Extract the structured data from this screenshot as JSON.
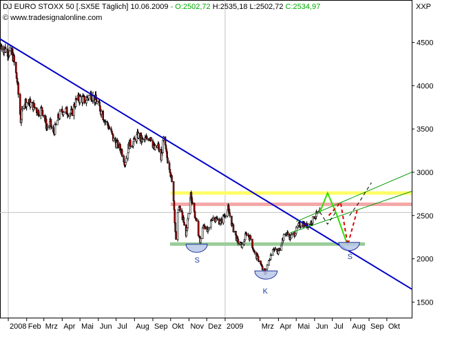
{
  "header": {
    "title": "DJ EURO STOXX 50 [.SX5E  Täglich]",
    "date": "10.06.2009",
    "ohlc": [
      {
        "text": " - O:2502,72",
        "color": "#00aa00"
      },
      {
        "text": " H:2535,18",
        "color": "#000000"
      },
      {
        "text": " L:2502,72",
        "color": "#000000"
      },
      {
        "text": " C:2534,97",
        "color": "#00aa00"
      }
    ],
    "source": "© www.tradesignalonline.com"
  },
  "colors": {
    "price": "#000000",
    "up_body": "#ffffff",
    "down_body": "#b40000",
    "downtrend_line": "#0000c8",
    "channel_lines": "#009900",
    "resistance": "#ffff66",
    "resistance_2": "#f4a8a8",
    "support": "#99cc99",
    "projection_green": "#33dd00",
    "projection_red": "#e00000",
    "formation_fill": "#b8c8e8",
    "grid": "#c0c0c0"
  },
  "chart_data": {
    "type": "line",
    "title": "DJ EURO STOXX 50 [.SX5E  Täglich]",
    "ylabel": "XXP",
    "xlabel": "",
    "ylim": [
      1320,
      4990
    ],
    "xlim": [
      "2007-12-18",
      "2009-11-12"
    ],
    "y_ticks": [
      1500,
      2000,
      2500,
      3000,
      3500,
      4000,
      4500
    ],
    "x_tick_labels": [
      {
        "label": "2008",
        "date": "2008-01-01"
      },
      {
        "label": "Feb",
        "date": "2008-02-01"
      },
      {
        "label": "Mrz",
        "date": "2008-03-01"
      },
      {
        "label": "Apr",
        "date": "2008-04-01"
      },
      {
        "label": "Mai",
        "date": "2008-05-01"
      },
      {
        "label": "Jun",
        "date": "2008-06-01"
      },
      {
        "label": "Jul",
        "date": "2008-07-01"
      },
      {
        "label": "Aug",
        "date": "2008-08-01"
      },
      {
        "label": "Sep",
        "date": "2008-09-01"
      },
      {
        "label": "Okt",
        "date": "2008-10-01"
      },
      {
        "label": "Nov",
        "date": "2008-11-01"
      },
      {
        "label": "Dez",
        "date": "2008-12-01"
      },
      {
        "label": "2009",
        "date": "2009-01-01"
      },
      {
        "label": "Mrz",
        "date": "2009-03-01"
      },
      {
        "label": "Apr",
        "date": "2009-04-01"
      },
      {
        "label": "Mai",
        "date": "2009-05-01"
      },
      {
        "label": "Jun",
        "date": "2009-06-01"
      },
      {
        "label": "Jul",
        "date": "2009-07-01"
      },
      {
        "label": "Aug",
        "date": "2009-08-01"
      },
      {
        "label": "Sep",
        "date": "2009-09-01"
      },
      {
        "label": "Okt",
        "date": "2009-10-01"
      }
    ],
    "year_separators": [
      "2008-01-01",
      "2009-01-01"
    ],
    "grid": true,
    "series": [
      {
        "points": [
          [
            "2007-12-20",
            4460
          ],
          [
            "2007-12-31",
            4400
          ],
          [
            "2008-01-09",
            4340
          ],
          [
            "2008-01-16",
            4050
          ],
          [
            "2008-01-22",
            3600
          ],
          [
            "2008-01-28",
            3820
          ],
          [
            "2008-02-06",
            3800
          ],
          [
            "2008-02-13",
            3760
          ],
          [
            "2008-02-20",
            3700
          ],
          [
            "2008-02-27",
            3730
          ],
          [
            "2008-03-06",
            3520
          ],
          [
            "2008-03-12",
            3560
          ],
          [
            "2008-03-17",
            3440
          ],
          [
            "2008-03-26",
            3640
          ],
          [
            "2008-04-03",
            3720
          ],
          [
            "2008-04-10",
            3700
          ],
          [
            "2008-04-17",
            3680
          ],
          [
            "2008-04-24",
            3820
          ],
          [
            "2008-05-02",
            3860
          ],
          [
            "2008-05-09",
            3830
          ],
          [
            "2008-05-19",
            3900
          ],
          [
            "2008-05-28",
            3830
          ],
          [
            "2008-06-05",
            3720
          ],
          [
            "2008-06-12",
            3600
          ],
          [
            "2008-06-19",
            3520
          ],
          [
            "2008-06-27",
            3370
          ],
          [
            "2008-07-04",
            3310
          ],
          [
            "2008-07-10",
            3250
          ],
          [
            "2008-07-16",
            3110
          ],
          [
            "2008-07-23",
            3320
          ],
          [
            "2008-07-31",
            3350
          ],
          [
            "2008-08-07",
            3430
          ],
          [
            "2008-08-14",
            3360
          ],
          [
            "2008-08-21",
            3380
          ],
          [
            "2008-08-28",
            3420
          ],
          [
            "2008-09-04",
            3260
          ],
          [
            "2008-09-10",
            3300
          ],
          [
            "2008-09-15",
            3150
          ],
          [
            "2008-09-19",
            3380
          ],
          [
            "2008-09-25",
            3170
          ],
          [
            "2008-09-30",
            3040
          ],
          [
            "2008-10-06",
            2700
          ],
          [
            "2008-10-10",
            2200
          ],
          [
            "2008-10-14",
            2600
          ],
          [
            "2008-10-20",
            2520
          ],
          [
            "2008-10-27",
            2260
          ],
          [
            "2008-11-04",
            2760
          ],
          [
            "2008-11-11",
            2500
          ],
          [
            "2008-11-20",
            2200
          ],
          [
            "2008-11-26",
            2410
          ],
          [
            "2008-12-03",
            2300
          ],
          [
            "2008-12-10",
            2480
          ],
          [
            "2008-12-17",
            2460
          ],
          [
            "2008-12-24",
            2420
          ],
          [
            "2009-01-06",
            2580
          ],
          [
            "2009-01-14",
            2360
          ],
          [
            "2009-01-22",
            2200
          ],
          [
            "2009-01-30",
            2150
          ],
          [
            "2009-02-06",
            2300
          ],
          [
            "2009-02-13",
            2230
          ],
          [
            "2009-02-20",
            2050
          ],
          [
            "2009-02-27",
            1990
          ],
          [
            "2009-03-05",
            1880
          ],
          [
            "2009-03-09",
            1810
          ],
          [
            "2009-03-16",
            1980
          ],
          [
            "2009-03-23",
            2130
          ],
          [
            "2009-03-31",
            2060
          ],
          [
            "2009-04-07",
            2210
          ],
          [
            "2009-04-14",
            2300
          ],
          [
            "2009-04-21",
            2250
          ],
          [
            "2009-04-28",
            2290
          ],
          [
            "2009-05-05",
            2380
          ],
          [
            "2009-05-11",
            2410
          ],
          [
            "2009-05-18",
            2380
          ],
          [
            "2009-05-26",
            2420
          ],
          [
            "2009-06-02",
            2500
          ],
          [
            "2009-06-10",
            2535
          ]
        ]
      }
    ],
    "trendlines": [
      {
        "kind": "downtrend",
        "color_key": "downtrend_line",
        "from": [
          "2007-12-18",
          4540
        ],
        "to": [
          "2009-11-12",
          1650
        ]
      },
      {
        "kind": "channel_upper",
        "color_key": "channel_lines",
        "from": [
          "2009-05-01",
          2430
        ],
        "to": [
          "2009-11-12",
          3000
        ]
      },
      {
        "kind": "channel_lower",
        "color_key": "channel_lines",
        "from": [
          "2009-04-21",
          2300
        ],
        "to": [
          "2009-11-12",
          2780
        ]
      }
    ],
    "horizontal_bands": [
      {
        "kind": "resistance",
        "color_key": "resistance",
        "level": 2760,
        "from": "2008-10-01",
        "to": "2009-11-12"
      },
      {
        "kind": "resistance",
        "color_key": "resistance_2",
        "level": 2630,
        "from": "2008-10-01",
        "to": "2009-11-12"
      },
      {
        "kind": "support",
        "color_key": "support",
        "level": 2170,
        "from": "2008-09-30",
        "to": "2009-08-25"
      }
    ],
    "projections": [
      {
        "color_key": "projection_green",
        "points": [
          [
            "2009-06-10",
            2540
          ],
          [
            "2009-06-23",
            2760
          ],
          [
            "2009-07-08",
            2520
          ],
          [
            "2009-07-27",
            2150
          ]
        ]
      },
      {
        "color_key": "projection_red",
        "dashed": true,
        "points": [
          [
            "2009-06-25",
            2500
          ],
          [
            "2009-07-15",
            2650
          ],
          [
            "2009-07-27",
            2160
          ],
          [
            "2009-08-12",
            2560
          ]
        ]
      },
      {
        "color_key": "price",
        "dashed": true,
        "points": [
          [
            "2009-06-10",
            2540
          ],
          [
            "2009-06-23",
            2400
          ],
          [
            "2009-07-08",
            2550
          ]
        ]
      },
      {
        "color_key": "price",
        "dashed": true,
        "points": [
          [
            "2009-07-30",
            2500
          ],
          [
            "2009-08-15",
            2650
          ],
          [
            "2009-09-05",
            2880
          ]
        ]
      }
    ],
    "annotations": [
      {
        "text": "S",
        "anchor": [
          "2008-11-14",
          1990
        ],
        "arc": {
          "from": "2008-10-27",
          "to": "2008-12-02",
          "level": 2170
        }
      },
      {
        "text": "K",
        "anchor": [
          "2009-03-09",
          1630
        ],
        "arc": {
          "from": "2009-02-20",
          "to": "2009-03-30",
          "level": 1860
        }
      },
      {
        "text": "S",
        "anchor": [
          "2009-07-30",
          2030
        ],
        "arc": {
          "from": "2009-07-12",
          "to": "2009-08-16",
          "level": 2190
        }
      }
    ]
  }
}
